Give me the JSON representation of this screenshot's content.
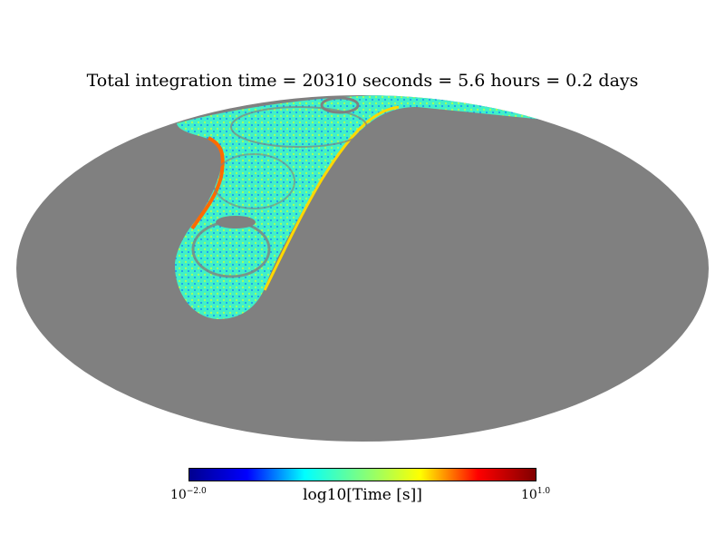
{
  "chart_data": {
    "type": "heatmap",
    "projection": "mollweide",
    "title": "Total integration time = 20310 seconds = 5.6 hours = 0.2 days",
    "colorbar": {
      "label": "log10[Time [s]]",
      "min_base": "10",
      "min_exp": "−2.0",
      "max_base": "10",
      "max_exp": "1.0",
      "min_value": -2.0,
      "max_value": 1.0,
      "colormap": [
        "#00008f",
        "#0000ff",
        "#00ffff",
        "#7fff7f",
        "#ffff00",
        "#ff0000",
        "#800000"
      ]
    },
    "background_color": "#808080",
    "coverage_color": "#3ff0c0",
    "edge_colors": [
      "#ffd000",
      "#ff6000",
      "#9cf030"
    ]
  }
}
